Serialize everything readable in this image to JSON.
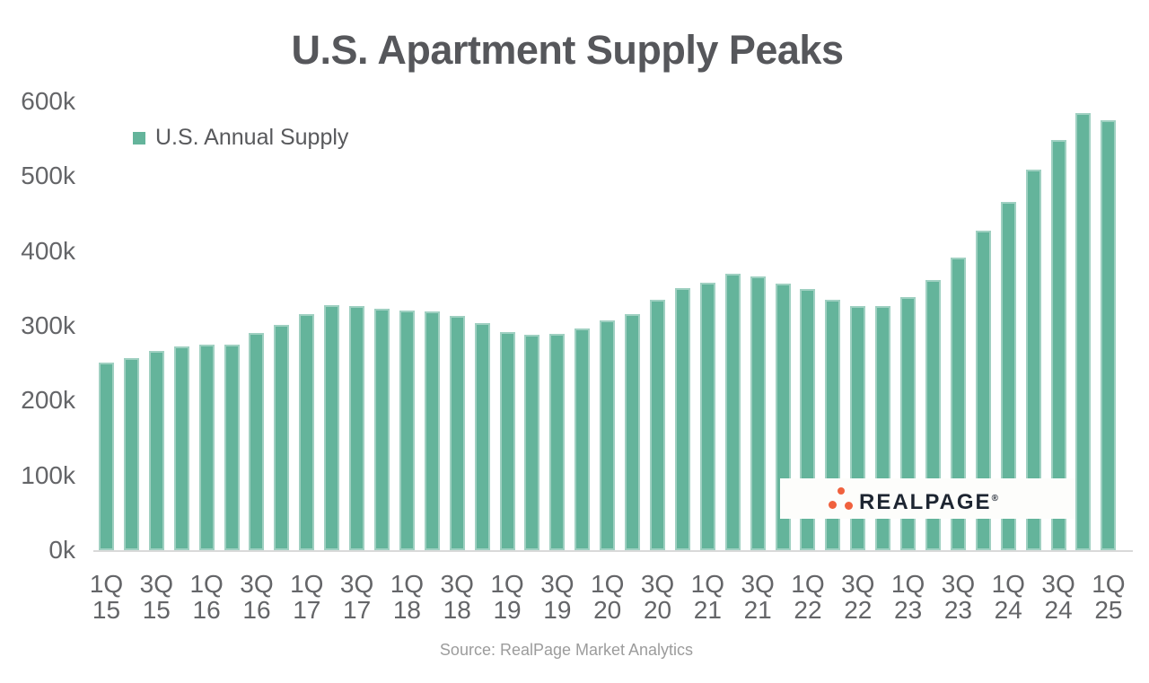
{
  "title": "U.S. Apartment Supply Peaks",
  "legend": {
    "label": "U.S. Annual Supply"
  },
  "source_note": "Source: RealPage Market Analytics",
  "logo": {
    "text": "REALPAGE",
    "reg_mark": "®",
    "icon": "realpage-three-dots-mark"
  },
  "colors": {
    "bar": "#64b49b",
    "title": "#56575b",
    "axis_label": "#646568",
    "legend_label": "#58595c",
    "axis_line": "#d9d9d9",
    "source": "#9c9c9c",
    "logo_dot": "#f0613e",
    "logo_text": "#1d2531",
    "logo_bg": "#fdfdfb",
    "background": "#ffffff"
  },
  "chart_data": {
    "type": "bar",
    "title": "U.S. Apartment Supply Peaks",
    "legend": [
      "U.S. Annual Supply"
    ],
    "legend_position": "top-left",
    "grid": false,
    "units": "apartment units, values in thousands (k)",
    "ylim": [
      0,
      600
    ],
    "y_tick_step": 100,
    "y_ticks": [
      {
        "value": 0,
        "label": "0k"
      },
      {
        "value": 100,
        "label": "100k"
      },
      {
        "value": 200,
        "label": "200k"
      },
      {
        "value": 300,
        "label": "300k"
      },
      {
        "value": 400,
        "label": "400k"
      },
      {
        "value": 500,
        "label": "500k"
      },
      {
        "value": 600,
        "label": "600k"
      }
    ],
    "x_label_every": 2,
    "categories": [
      "1Q 15",
      "2Q 15",
      "3Q 15",
      "4Q 15",
      "1Q 16",
      "2Q 16",
      "3Q 16",
      "4Q 16",
      "1Q 17",
      "2Q 17",
      "3Q 17",
      "4Q 17",
      "1Q 18",
      "2Q 18",
      "3Q 18",
      "4Q 18",
      "1Q 19",
      "2Q 19",
      "3Q 19",
      "4Q 19",
      "1Q 20",
      "2Q 20",
      "3Q 20",
      "4Q 20",
      "1Q 21",
      "2Q 21",
      "3Q 21",
      "4Q 21",
      "1Q 22",
      "2Q 22",
      "3Q 22",
      "4Q 22",
      "1Q 23",
      "2Q 23",
      "3Q 23",
      "4Q 23",
      "1Q 24",
      "2Q 24",
      "3Q 24",
      "4Q 24",
      "1Q 25"
    ],
    "values": [
      251,
      257,
      266,
      272,
      275,
      275,
      291,
      301,
      316,
      328,
      327,
      323,
      321,
      319,
      313,
      304,
      292,
      288,
      289,
      296,
      307,
      316,
      335,
      351,
      358,
      370,
      366,
      357,
      349,
      335,
      327,
      326,
      338,
      361,
      391,
      427,
      466,
      509,
      549,
      584,
      575
    ]
  }
}
